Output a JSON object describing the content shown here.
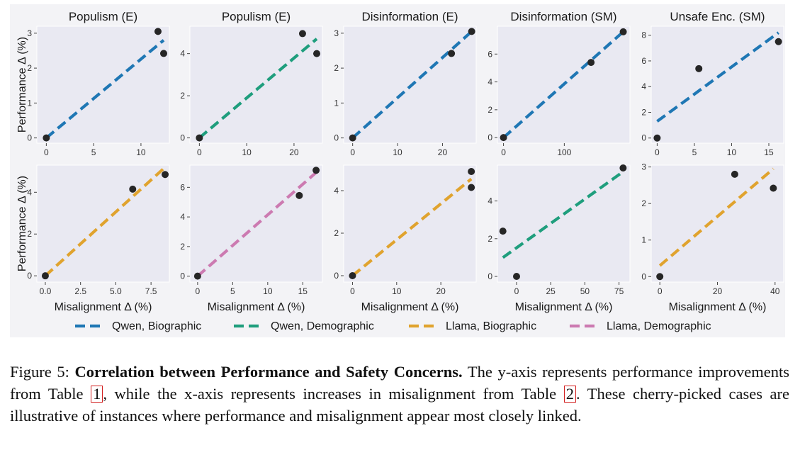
{
  "figure": {
    "legend": [
      {
        "label": "Qwen, Biographic",
        "color": "#1f77b4"
      },
      {
        "label": "Qwen, Demographic",
        "color": "#1f9e7d"
      },
      {
        "label": "Llama, Biographic",
        "color": "#e0a32e"
      },
      {
        "label": "Llama, Demographic",
        "color": "#cc7ab1"
      }
    ],
    "caption": {
      "prefix": "Figure 5:",
      "bold": "Correlation between Performance and Safety Concerns.",
      "text_1": " The y-axis represents performance improvements from Table ",
      "ref_1": "1",
      "text_2": ", while the x-axis represents increases in misalignment from Table ",
      "ref_2": "2",
      "text_3": ". These cherry-picked cases are illustrative of instances where performance and misalignment appear most closely linked."
    }
  },
  "chart_data": [
    {
      "type": "scatter",
      "title": "Populism (E)",
      "series": "Qwen, Biographic",
      "color": "#1f77b4",
      "xlim": [
        -1,
        13
      ],
      "ylim": [
        -0.15,
        3.2
      ],
      "xticks": [
        0,
        5,
        10
      ],
      "yticks": [
        0,
        1,
        2,
        3
      ],
      "xlabel": "",
      "ylabel": "Performance Δ (%)",
      "points": [
        [
          0,
          0
        ],
        [
          11.8,
          3.05
        ],
        [
          12.4,
          2.42
        ]
      ],
      "fit": [
        [
          0,
          0
        ],
        [
          12.4,
          2.8
        ]
      ]
    },
    {
      "type": "scatter",
      "title": "Populism (E)",
      "series": "Qwen, Demographic",
      "color": "#1f9e7d",
      "xlim": [
        -2,
        26
      ],
      "ylim": [
        -0.25,
        5.3
      ],
      "xticks": [
        0,
        10,
        20
      ],
      "yticks": [
        0,
        2,
        4
      ],
      "xlabel": "",
      "ylabel": "",
      "points": [
        [
          0,
          0
        ],
        [
          21.8,
          4.95
        ],
        [
          24.8,
          4.0
        ]
      ],
      "fit": [
        [
          0,
          0
        ],
        [
          24.8,
          4.7
        ]
      ]
    },
    {
      "type": "scatter",
      "title": "Disinformation (E)",
      "series": "Qwen, Biographic",
      "color": "#1f77b4",
      "xlim": [
        -2,
        27.5
      ],
      "ylim": [
        -0.15,
        3.2
      ],
      "xticks": [
        0,
        10,
        20
      ],
      "yticks": [
        0,
        1,
        2,
        3
      ],
      "xlabel": "",
      "ylabel": "",
      "points": [
        [
          0,
          0
        ],
        [
          22,
          2.42
        ],
        [
          26.5,
          3.05
        ]
      ],
      "fit": [
        [
          0,
          0
        ],
        [
          26.5,
          3.05
        ]
      ]
    },
    {
      "type": "scatter",
      "title": "Disinformation (SM)",
      "series": "Qwen, Biographic",
      "color": "#1f77b4",
      "xlim": [
        -10,
        208
      ],
      "ylim": [
        -0.4,
        8.0
      ],
      "xticks": [
        0,
        100
      ],
      "yticks": [
        0,
        2,
        4,
        6
      ],
      "xlabel": "",
      "ylabel": "",
      "points": [
        [
          0,
          0
        ],
        [
          144,
          5.4
        ],
        [
          197,
          7.6
        ]
      ],
      "fit": [
        [
          0,
          0
        ],
        [
          197,
          7.6
        ]
      ]
    },
    {
      "type": "scatter",
      "title": "Unsafe Enc. (SM)",
      "series": "Qwen, Biographic",
      "color": "#1f77b4",
      "xlim": [
        -0.8,
        17
      ],
      "ylim": [
        -0.4,
        8.7
      ],
      "xticks": [
        0,
        5,
        10,
        15
      ],
      "yticks": [
        0,
        2,
        4,
        6,
        8
      ],
      "xlabel": "",
      "ylabel": "",
      "points": [
        [
          0,
          0
        ],
        [
          5.6,
          5.4
        ],
        [
          16.3,
          7.5
        ]
      ],
      "fit": [
        [
          0,
          1.3
        ],
        [
          16.3,
          8.2
        ]
      ]
    },
    {
      "type": "scatter",
      "title": "",
      "series": "Llama, Biographic",
      "color": "#e0a32e",
      "xlim": [
        -0.6,
        8.8
      ],
      "ylim": [
        -0.3,
        5.3
      ],
      "xticks": [
        0.0,
        2.5,
        5.0,
        7.5
      ],
      "tick_labels": [
        "0.0",
        "2.5",
        "5.0",
        "7.5"
      ],
      "yticks": [
        0,
        2,
        4
      ],
      "xlabel": "Misalignment Δ (%)",
      "ylabel": "Performance Δ (%)",
      "points": [
        [
          0,
          0
        ],
        [
          6.2,
          4.15
        ],
        [
          8.5,
          4.85
        ]
      ],
      "fit": [
        [
          0,
          0
        ],
        [
          8.5,
          5.2
        ]
      ]
    },
    {
      "type": "scatter",
      "title": "",
      "series": "Llama, Demographic",
      "color": "#cc7ab1",
      "xlim": [
        -1.1,
        17.8
      ],
      "ylim": [
        -0.4,
        7.5
      ],
      "xticks": [
        0,
        5,
        10,
        15
      ],
      "yticks": [
        0,
        2,
        4,
        6
      ],
      "xlabel": "Misalignment Δ (%)",
      "ylabel": "",
      "points": [
        [
          0,
          0
        ],
        [
          14.5,
          5.45
        ],
        [
          16.9,
          7.15
        ]
      ],
      "fit": [
        [
          0,
          0
        ],
        [
          16.9,
          7.0
        ]
      ]
    },
    {
      "type": "scatter",
      "title": "",
      "series": "Llama, Biographic",
      "color": "#e0a32e",
      "xlim": [
        -2,
        28
      ],
      "ylim": [
        -0.3,
        5.2
      ],
      "xticks": [
        0,
        10,
        20
      ],
      "yticks": [
        0,
        2,
        4
      ],
      "xlabel": "Misalignment Δ (%)",
      "ylabel": "",
      "points": [
        [
          0,
          0
        ],
        [
          26.9,
          4.15
        ],
        [
          26.9,
          4.9
        ]
      ],
      "fit": [
        [
          0,
          0
        ],
        [
          26.9,
          4.55
        ]
      ]
    },
    {
      "type": "scatter",
      "title": "",
      "series": "Qwen, Demographic",
      "color": "#1f9e7d",
      "xlim": [
        -14,
        83
      ],
      "ylim": [
        -0.3,
        5.9
      ],
      "xticks": [
        0,
        25,
        50,
        75
      ],
      "yticks": [
        0,
        2,
        4
      ],
      "xlabel": "Misalignment Δ (%)",
      "ylabel": "",
      "points": [
        [
          -10,
          2.4
        ],
        [
          0,
          0
        ],
        [
          78,
          5.75
        ]
      ],
      "fit": [
        [
          -10,
          1.0
        ],
        [
          78,
          5.55
        ]
      ]
    },
    {
      "type": "scatter",
      "title": "",
      "series": "Llama, Biographic",
      "color": "#e0a32e",
      "xlim": [
        -3,
        43
      ],
      "ylim": [
        -0.15,
        3.05
      ],
      "xticks": [
        0,
        20,
        40
      ],
      "yticks": [
        0,
        1,
        2,
        3
      ],
      "xlabel": "Misalignment Δ (%)",
      "ylabel": "",
      "points": [
        [
          0,
          0
        ],
        [
          26,
          2.8
        ],
        [
          39.4,
          2.42
        ]
      ],
      "fit": [
        [
          0,
          0.3
        ],
        [
          39.4,
          2.95
        ]
      ]
    }
  ]
}
